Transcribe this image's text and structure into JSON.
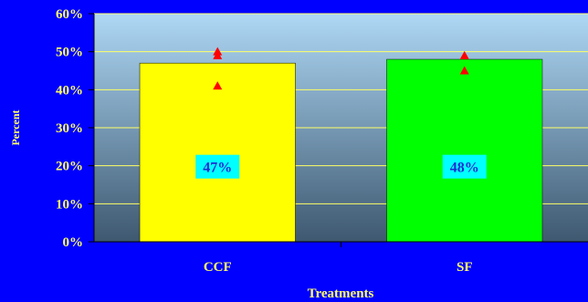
{
  "chart_data": {
    "type": "bar",
    "categories": [
      "CCF",
      "SF"
    ],
    "values": [
      47,
      48
    ],
    "data_labels": [
      "47%",
      "48%"
    ],
    "bar_colors": [
      "#ffff00",
      "#00ff00"
    ],
    "individual_points": [
      {
        "category": "CCF",
        "values": [
          50,
          49,
          41
        ]
      },
      {
        "category": "SF",
        "values": [
          49,
          45
        ]
      }
    ],
    "point_color": "#ff0000",
    "xlabel": "Treatments",
    "ylabel": "Percent",
    "ylim": [
      0,
      60
    ],
    "yticks": [
      "0%",
      "10%",
      "20%",
      "30%",
      "40%",
      "50%",
      "60%"
    ],
    "grid": true,
    "colors": {
      "background": "#0000ff",
      "plot_top": "#aed8f5",
      "plot_bottom": "#3e5870",
      "gridline": "#ffff66",
      "text": "#ffff66",
      "label_box": "#00ffff",
      "label_text": "#1f2bd1"
    }
  }
}
